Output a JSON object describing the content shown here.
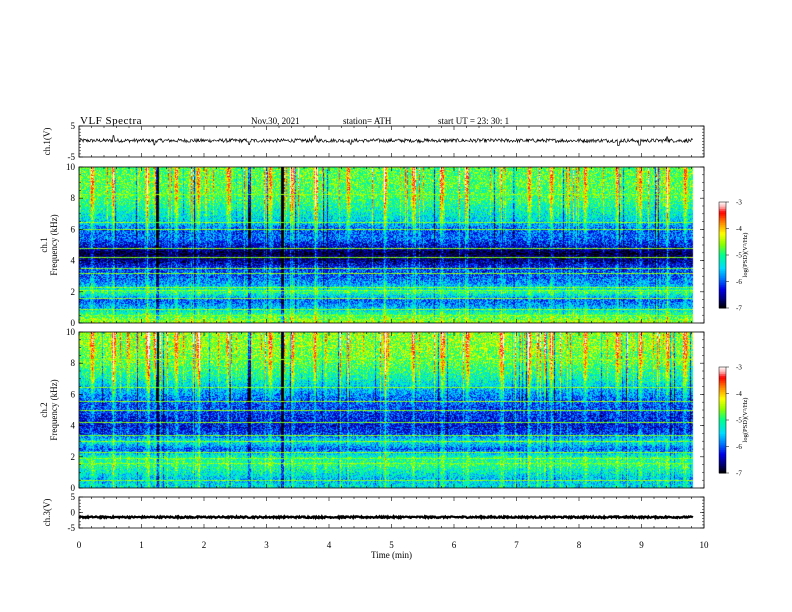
{
  "header": {
    "title": "VLF  Spectra",
    "date": "Nov.30, 2021",
    "station": "station= ATH",
    "start": "start  UT  =   23: 30: 1"
  },
  "colors": {
    "spectrogram_background": "#000000",
    "trace": "#000000",
    "colormap": [
      "#000000",
      "#000080",
      "#0000ff",
      "#00a0ff",
      "#00ffff",
      "#00ff80",
      "#80ff00",
      "#ffff00",
      "#ff8000",
      "#ff0000",
      "#ffb0b0",
      "#ffffff"
    ]
  },
  "chart_data": [
    {
      "type": "line",
      "name": "ch1-waveform",
      "ylabel": "ch.1(V)",
      "ylim": [
        -5,
        5
      ],
      "y_ticks": [
        "5",
        "-5"
      ],
      "xlim": [
        0,
        10
      ],
      "mean_level_v": 0.3,
      "noise_amplitude_v": 0.6,
      "spikes": [
        {
          "t": 0.55,
          "v": 1.6
        },
        {
          "t": 1.21,
          "v": -1.4
        },
        {
          "t": 2.72,
          "v": -1.3
        },
        {
          "t": 3.78,
          "v": 1.5
        },
        {
          "t": 4.35,
          "v": -1.2
        },
        {
          "t": 8.63,
          "v": -1.6
        },
        {
          "t": 8.97,
          "v": -1.5
        },
        {
          "t": 9.41,
          "v": 1.2
        }
      ]
    },
    {
      "type": "heatmap",
      "name": "ch1-spectrogram",
      "ylabel": "ch.1\nFrequency  (kHz)",
      "ylim": [
        0,
        10
      ],
      "y_ticks": [
        "0",
        "2",
        "4",
        "6",
        "8",
        "10"
      ],
      "xlim": [
        0,
        10
      ],
      "data_extent_min": [
        0,
        9.82
      ],
      "colorbar": {
        "label": "log(PSD)(V²/Hz)",
        "range": [
          -7,
          -3
        ],
        "ticks": [
          "-3",
          "-4",
          "-5",
          "-6",
          "-7"
        ]
      },
      "freq_profile": [
        {
          "f": 0.2,
          "level": -4.6
        },
        {
          "f": 0.6,
          "level": -5.0
        },
        {
          "f": 1.0,
          "level": -5.6
        },
        {
          "f": 1.5,
          "level": -6.0
        },
        {
          "f": 2.0,
          "level": -5.0
        },
        {
          "f": 2.5,
          "level": -5.7
        },
        {
          "f": 3.0,
          "level": -6.0
        },
        {
          "f": 3.5,
          "level": -6.1
        },
        {
          "f": 4.0,
          "level": -6.6
        },
        {
          "f": 4.5,
          "level": -6.9
        },
        {
          "f": 5.0,
          "level": -6.3
        },
        {
          "f": 5.5,
          "level": -5.9
        },
        {
          "f": 6.0,
          "level": -6.0
        },
        {
          "f": 6.5,
          "level": -5.5
        },
        {
          "f": 7.0,
          "level": -5.3
        },
        {
          "f": 7.5,
          "level": -5.1
        },
        {
          "f": 8.0,
          "level": -4.9
        },
        {
          "f": 9.0,
          "level": -4.8
        },
        {
          "f": 10.0,
          "level": -4.8
        }
      ],
      "horizontal_lines_khz": [
        0.2,
        0.5,
        0.9,
        1.6,
        2.1,
        2.3,
        3.2,
        3.5,
        4.2,
        4.8,
        6.0,
        6.5,
        8.3
      ],
      "sferic_times_min": [
        0.2,
        0.55,
        1.08,
        1.22,
        1.55,
        1.9,
        2.38,
        2.72,
        3.05,
        3.4,
        3.78,
        4.3,
        4.9,
        5.35,
        5.8,
        6.2,
        6.75,
        7.2,
        7.55,
        8.1,
        8.6,
        8.97,
        9.4,
        9.7
      ],
      "dark_stripe_times_min": [
        1.25,
        2.72,
        3.25
      ]
    },
    {
      "type": "heatmap",
      "name": "ch2-spectrogram",
      "ylabel": "ch.2\nFrequency  (kHz)",
      "ylim": [
        0,
        10
      ],
      "y_ticks": [
        "0",
        "2",
        "4",
        "6",
        "8",
        "10"
      ],
      "xlim": [
        0,
        10
      ],
      "data_extent_min": [
        0,
        9.82
      ],
      "colorbar": {
        "label": "log(PSD)(V²/Hz)",
        "range": [
          -7,
          -3
        ],
        "ticks": [
          "-3",
          "-4",
          "-5",
          "-6",
          "-7"
        ]
      },
      "freq_profile": [
        {
          "f": 0.2,
          "level": -5.4
        },
        {
          "f": 0.6,
          "level": -5.6
        },
        {
          "f": 1.0,
          "level": -5.3
        },
        {
          "f": 1.5,
          "level": -5.0
        },
        {
          "f": 2.0,
          "level": -5.1
        },
        {
          "f": 2.5,
          "level": -6.0
        },
        {
          "f": 3.0,
          "level": -5.3
        },
        {
          "f": 3.5,
          "level": -6.1
        },
        {
          "f": 4.0,
          "level": -6.3
        },
        {
          "f": 4.5,
          "level": -6.2
        },
        {
          "f": 5.0,
          "level": -6.1
        },
        {
          "f": 5.5,
          "level": -6.0
        },
        {
          "f": 6.0,
          "level": -5.8
        },
        {
          "f": 6.5,
          "level": -5.5
        },
        {
          "f": 7.0,
          "level": -5.2
        },
        {
          "f": 7.5,
          "level": -5.0
        },
        {
          "f": 8.0,
          "level": -4.8
        },
        {
          "f": 9.0,
          "level": -4.6
        },
        {
          "f": 10.0,
          "level": -4.6
        }
      ],
      "horizontal_lines_khz": [
        0.5,
        1.6,
        1.9,
        2.3,
        3.0,
        3.4,
        4.2,
        5.0,
        5.6,
        6.5,
        8.3
      ],
      "sferic_times_min": [
        0.2,
        0.55,
        1.08,
        1.22,
        1.55,
        1.9,
        2.38,
        2.72,
        3.05,
        3.4,
        3.78,
        4.3,
        4.9,
        5.35,
        5.8,
        6.2,
        6.75,
        7.2,
        7.55,
        8.1,
        8.6,
        8.97,
        9.4,
        9.7
      ],
      "dark_stripe_times_min": [
        1.25,
        2.72,
        3.25
      ]
    },
    {
      "type": "line",
      "name": "ch3-waveform",
      "ylabel": "ch.3(V)",
      "ylim": [
        -5,
        5
      ],
      "y_ticks": [
        "5",
        "0",
        "-5"
      ],
      "xlim": [
        0,
        10
      ],
      "mean_level_v": -1.5,
      "noise_amplitude_v": 0.25
    }
  ],
  "x_axis": {
    "label": "Time  (min)",
    "range": [
      0,
      10
    ],
    "ticks": [
      "0",
      "1",
      "2",
      "3",
      "4",
      "5",
      "6",
      "7",
      "8",
      "9",
      "10"
    ]
  }
}
